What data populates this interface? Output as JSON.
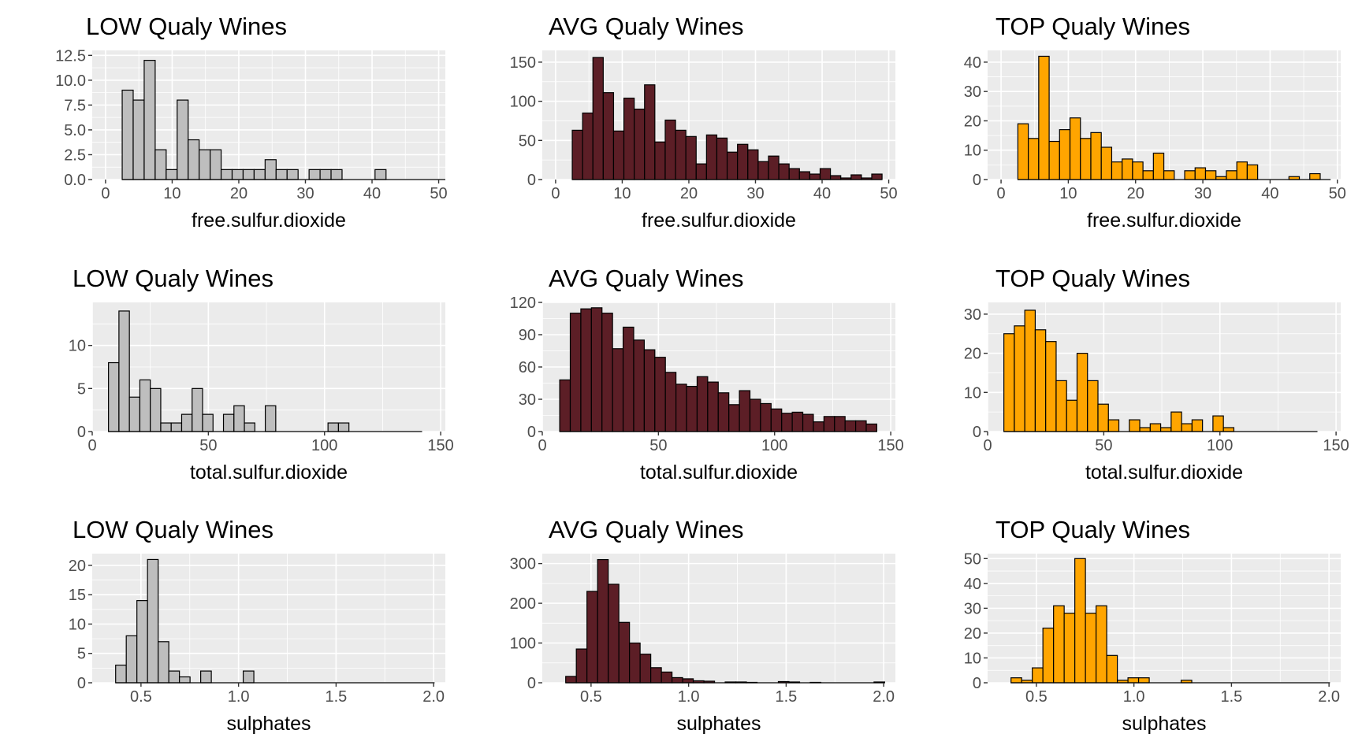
{
  "colors": {
    "low": "#bebebe",
    "avg": "#5c1e26",
    "top": "#ffa500",
    "panel_bg": "#ebebeb",
    "grid": "#ffffff"
  },
  "chart_data": [
    {
      "type": "bar",
      "title": "LOW  Qualy Wines",
      "xlabel": "free.sulfur.dioxide",
      "color_key": "low",
      "bin_start": 2.5,
      "bin_width": 1.65,
      "values": [
        9,
        8,
        12,
        3,
        1,
        8,
        4,
        3,
        3,
        1,
        1,
        1,
        1,
        2,
        1,
        1,
        0,
        1,
        1,
        1,
        0,
        0,
        0,
        1,
        0,
        0,
        0,
        0,
        0,
        0
      ],
      "xlim": [
        -2,
        51
      ],
      "ylim": [
        0,
        13
      ],
      "xticks": [
        "0",
        "10",
        "20",
        "30",
        "40",
        "50"
      ],
      "xtick_values": [
        0,
        10,
        20,
        30,
        40,
        50
      ],
      "yticks": [
        "0.0",
        "2.5",
        "5.0",
        "7.5",
        "10.0",
        "12.5"
      ],
      "ytick_values": [
        0,
        2.5,
        5,
        7.5,
        10,
        12.5
      ]
    },
    {
      "type": "bar",
      "title": "AVG  Qualy Wines",
      "xlabel": "free.sulfur.dioxide",
      "color_key": "avg",
      "bin_start": 2.5,
      "bin_width": 1.55,
      "values": [
        63,
        85,
        156,
        111,
        62,
        104,
        90,
        121,
        48,
        76,
        63,
        55,
        20,
        57,
        53,
        35,
        45,
        38,
        23,
        30,
        20,
        14,
        10,
        7,
        14,
        5,
        2,
        6,
        2,
        7
      ],
      "xlim": [
        -2,
        51
      ],
      "ylim": [
        0,
        165
      ],
      "xticks": [
        "0",
        "10",
        "20",
        "30",
        "40",
        "50"
      ],
      "xtick_values": [
        0,
        10,
        20,
        30,
        40,
        50
      ],
      "yticks": [
        "0",
        "50",
        "100",
        "150"
      ],
      "ytick_values": [
        0,
        50,
        100,
        150
      ]
    },
    {
      "type": "bar",
      "title": "TOP  Qualy Wines",
      "xlabel": "free.sulfur.dioxide",
      "color_key": "top",
      "bin_start": 2.5,
      "bin_width": 1.55,
      "values": [
        19,
        14,
        42,
        13,
        17,
        21,
        14,
        16,
        11,
        6,
        7,
        6,
        3,
        9,
        3,
        0,
        3,
        4,
        3,
        1,
        3,
        6,
        5,
        0,
        0,
        0,
        1,
        0,
        2,
        0
      ],
      "xlim": [
        -2,
        50.5
      ],
      "ylim": [
        0,
        44
      ],
      "xticks": [
        "0",
        "10",
        "20",
        "30",
        "40",
        "50"
      ],
      "xtick_values": [
        0,
        10,
        20,
        30,
        40,
        50
      ],
      "yticks": [
        "0",
        "10",
        "20",
        "30",
        "40"
      ],
      "ytick_values": [
        0,
        10,
        20,
        30,
        40
      ]
    },
    {
      "type": "bar",
      "title": "LOW  Qualy Wines",
      "xlabel": "total.sulfur.dioxide",
      "color_key": "low",
      "bin_start": 7,
      "bin_width": 4.5,
      "values": [
        8,
        14,
        4,
        6,
        5,
        1,
        1,
        2,
        5,
        2,
        0,
        2,
        3,
        1,
        0,
        3,
        0,
        0,
        0,
        0,
        0,
        1,
        1,
        0,
        0,
        0,
        0,
        0,
        0,
        0
      ],
      "xlim": [
        0,
        152
      ],
      "ylim": [
        0,
        15
      ],
      "xticks": [
        "0",
        "50",
        "100",
        "150"
      ],
      "xtick_values": [
        0,
        50,
        100,
        150
      ],
      "yticks": [
        "0",
        "5",
        "10"
      ],
      "ytick_values": [
        0,
        5,
        10
      ]
    },
    {
      "type": "bar",
      "title": "AVG  Qualy Wines",
      "xlabel": "total.sulfur.dioxide",
      "color_key": "avg",
      "bin_start": 7.5,
      "bin_width": 4.55,
      "values": [
        48,
        110,
        114,
        115,
        110,
        77,
        97,
        85,
        76,
        69,
        55,
        44,
        42,
        51,
        46,
        36,
        25,
        38,
        30,
        26,
        21,
        17,
        18,
        16,
        9,
        14,
        14,
        10,
        10,
        7
      ],
      "xlim": [
        0,
        152
      ],
      "ylim": [
        0,
        120
      ],
      "xticks": [
        "0",
        "50",
        "100",
        "150"
      ],
      "xtick_values": [
        0,
        50,
        100,
        150
      ],
      "yticks": [
        "0",
        "30",
        "60",
        "90",
        "120"
      ],
      "ytick_values": [
        0,
        30,
        60,
        90,
        120
      ]
    },
    {
      "type": "bar",
      "title": "TOP  Qualy Wines",
      "xlabel": "total.sulfur.dioxide",
      "color_key": "top",
      "bin_start": 7,
      "bin_width": 4.5,
      "values": [
        25,
        27,
        31,
        26,
        23,
        13,
        8,
        20,
        13,
        7,
        3,
        0,
        3,
        1,
        2,
        1,
        5,
        2,
        3,
        0,
        4,
        1,
        0,
        0,
        0,
        0,
        0,
        0,
        0,
        0
      ],
      "xlim": [
        0,
        152
      ],
      "ylim": [
        0,
        33
      ],
      "xticks": [
        "0",
        "50",
        "100",
        "150"
      ],
      "xtick_values": [
        0,
        50,
        100,
        150
      ],
      "yticks": [
        "0",
        "10",
        "20",
        "30"
      ],
      "ytick_values": [
        0,
        10,
        20,
        30
      ]
    },
    {
      "type": "bar",
      "title": "LOW  Qualy Wines",
      "xlabel": "sulphates",
      "color_key": "low",
      "bin_start": 0.37,
      "bin_width": 0.0545,
      "values": [
        3,
        8,
        14,
        21,
        7,
        2,
        1,
        0,
        2,
        0,
        0,
        0,
        2,
        0,
        0,
        0,
        0,
        0,
        0,
        0,
        0,
        0,
        0,
        0,
        0,
        0,
        0,
        0,
        0,
        0
      ],
      "xlim": [
        0.25,
        2.06
      ],
      "ylim": [
        0,
        22
      ],
      "xticks": [
        "0.5",
        "1.0",
        "1.5",
        "2.0"
      ],
      "xtick_values": [
        0.5,
        1.0,
        1.5,
        2.0
      ],
      "yticks": [
        "0",
        "5",
        "10",
        "15",
        "20"
      ],
      "ytick_values": [
        0,
        5,
        10,
        15,
        20
      ]
    },
    {
      "type": "bar",
      "title": "AVG  Qualy Wines",
      "xlabel": "sulphates",
      "color_key": "avg",
      "bin_start": 0.37,
      "bin_width": 0.0545,
      "values": [
        16,
        85,
        230,
        310,
        248,
        152,
        100,
        72,
        38,
        27,
        13,
        10,
        5,
        4,
        0,
        2,
        2,
        1,
        0,
        0,
        3,
        2,
        0,
        1,
        0,
        0,
        0,
        0,
        0,
        2
      ],
      "xlim": [
        0.25,
        2.06
      ],
      "ylim": [
        0,
        325
      ],
      "xticks": [
        "0.5",
        "1.0",
        "1.5",
        "2.0"
      ],
      "xtick_values": [
        0.5,
        1.0,
        1.5,
        2.0
      ],
      "yticks": [
        "0",
        "100",
        "200",
        "300"
      ],
      "ytick_values": [
        0,
        100,
        200,
        300
      ]
    },
    {
      "type": "bar",
      "title": "TOP  Qualy Wines",
      "xlabel": "sulphates",
      "color_key": "top",
      "bin_start": 0.37,
      "bin_width": 0.0545,
      "values": [
        2,
        1,
        6,
        22,
        31,
        28,
        50,
        28,
        31,
        11,
        1,
        2,
        2,
        0,
        0,
        0,
        1,
        0,
        0,
        0,
        0,
        0,
        0,
        0,
        0,
        0,
        0,
        0,
        0,
        0
      ],
      "xlim": [
        0.25,
        2.06
      ],
      "ylim": [
        0,
        52
      ],
      "xticks": [
        "0.5",
        "1.0",
        "1.5",
        "2.0"
      ],
      "xtick_values": [
        0.5,
        1.0,
        1.5,
        2.0
      ],
      "yticks": [
        "0",
        "10",
        "20",
        "30",
        "40",
        "50"
      ],
      "ytick_values": [
        0,
        10,
        20,
        30,
        40,
        50
      ]
    }
  ]
}
